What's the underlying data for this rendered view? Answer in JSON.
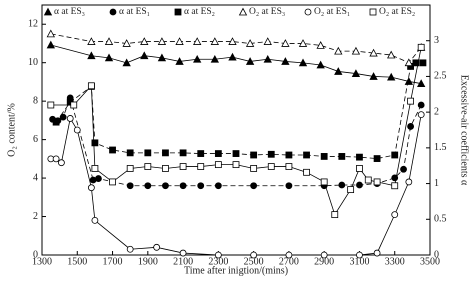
{
  "chart_data": {
    "type": "line",
    "xlabel": "Time after inigtion/(mins)",
    "ylabel": "O₂ content/%",
    "y2label": "Excessive-air coefficients α",
    "xlim": [
      1300,
      3500
    ],
    "xticks": [
      1300,
      1500,
      1700,
      1900,
      2100,
      2300,
      2500,
      2700,
      2900,
      3100,
      3300,
      3500
    ],
    "ylim": [
      0,
      13
    ],
    "yticks": [
      0,
      2,
      4,
      6,
      8,
      10,
      12
    ],
    "y2lim": [
      0,
      3.5
    ],
    "y2ticks": [
      0,
      0.5,
      1,
      1.5,
      2,
      2.5,
      3
    ],
    "series": [
      {
        "name": "α at ES₃",
        "axis": "y2",
        "color": "#000000",
        "marker": "triangle",
        "filled": true,
        "dashed": false,
        "x": [
          1350,
          1580,
          1680,
          1780,
          1880,
          1980,
          2080,
          2180,
          2280,
          2380,
          2480,
          2580,
          2680,
          2780,
          2880,
          2980,
          3080,
          3180,
          3280,
          3380,
          3450
        ],
        "values": [
          2.94,
          2.79,
          2.76,
          2.69,
          2.79,
          2.76,
          2.71,
          2.74,
          2.74,
          2.77,
          2.71,
          2.74,
          2.71,
          2.69,
          2.66,
          2.57,
          2.54,
          2.5,
          2.49,
          2.43,
          2.4
        ]
      },
      {
        "name": "α at ES₁",
        "axis": "y2",
        "color": "#000000",
        "marker": "circle",
        "filled": true,
        "dashed": true,
        "x": [
          1360,
          1390,
          1420,
          1460,
          1590,
          1620,
          1800,
          1900,
          2000,
          2100,
          2200,
          2300,
          2500,
          2700,
          2900,
          3000,
          3100,
          3200,
          3300,
          3350,
          3390,
          3450
        ],
        "values": [
          1.9,
          1.88,
          1.93,
          2.2,
          1.05,
          1.07,
          0.97,
          0.97,
          0.97,
          0.97,
          0.97,
          0.97,
          0.97,
          0.97,
          0.97,
          0.98,
          0.98,
          1.0,
          1.08,
          1.2,
          1.8,
          2.1
        ]
      },
      {
        "name": "α at ES₂",
        "axis": "y2",
        "color": "#000000",
        "marker": "square",
        "filled": true,
        "dashed": true,
        "x": [
          1380,
          1460,
          1580,
          1600,
          1700,
          1800,
          1900,
          2000,
          2100,
          2200,
          2300,
          2400,
          2500,
          2600,
          2700,
          2800,
          2900,
          3000,
          3100,
          3200,
          3300,
          3390,
          3420,
          3460
        ],
        "values": [
          1.86,
          2.14,
          2.36,
          1.57,
          1.47,
          1.43,
          1.43,
          1.43,
          1.43,
          1.42,
          1.42,
          1.42,
          1.4,
          1.41,
          1.4,
          1.4,
          1.38,
          1.38,
          1.37,
          1.35,
          1.4,
          2.64,
          2.69,
          2.69
        ]
      },
      {
        "name": "O₂ at ES₃",
        "color": "#000000",
        "marker": "triangle",
        "filled": false,
        "dashed": true,
        "x": [
          1350,
          1580,
          1680,
          1780,
          1880,
          1980,
          2080,
          2180,
          2280,
          2380,
          2480,
          2580,
          2680,
          2780,
          2880,
          2980,
          3080,
          3180,
          3280,
          3380,
          3450
        ],
        "values": [
          11.5,
          11.1,
          11.1,
          11,
          11.1,
          11.1,
          11.1,
          11.1,
          11.1,
          11.1,
          11,
          11.1,
          11,
          11,
          10.9,
          10.6,
          10.6,
          10.5,
          10.4,
          10,
          10.8
        ]
      },
      {
        "name": "O₂ at ES₁",
        "color": "#000000",
        "marker": "circle",
        "filled": false,
        "dashed": false,
        "x": [
          1350,
          1380,
          1410,
          1460,
          1500,
          1580,
          1600,
          1800,
          1950,
          2100,
          2300,
          2500,
          2700,
          2900,
          3100,
          3200,
          3300,
          3380,
          3450
        ],
        "values": [
          5,
          5,
          4.8,
          7.1,
          6.5,
          3.5,
          1.8,
          0.3,
          0.4,
          0.1,
          0,
          0,
          0,
          0,
          0,
          0.1,
          2.1,
          3.8,
          7.3
        ]
      },
      {
        "name": "O₂ at ES₂",
        "color": "#000000",
        "marker": "square",
        "filled": false,
        "dashed": false,
        "x": [
          1350,
          1480,
          1580,
          1600,
          1700,
          1800,
          1900,
          2000,
          2100,
          2200,
          2300,
          2400,
          2500,
          2600,
          2700,
          2800,
          2900,
          2960,
          3050,
          3100,
          3150,
          3200,
          3300,
          3390,
          3450
        ],
        "values": [
          7.8,
          7.8,
          8.8,
          4.5,
          3.8,
          4.5,
          4.6,
          4.5,
          4.6,
          4.6,
          4.7,
          4.7,
          4.5,
          4.6,
          4.6,
          4.3,
          3.8,
          2.1,
          3.4,
          4.5,
          3.9,
          3.8,
          3.6,
          8,
          10.8
        ]
      }
    ]
  }
}
